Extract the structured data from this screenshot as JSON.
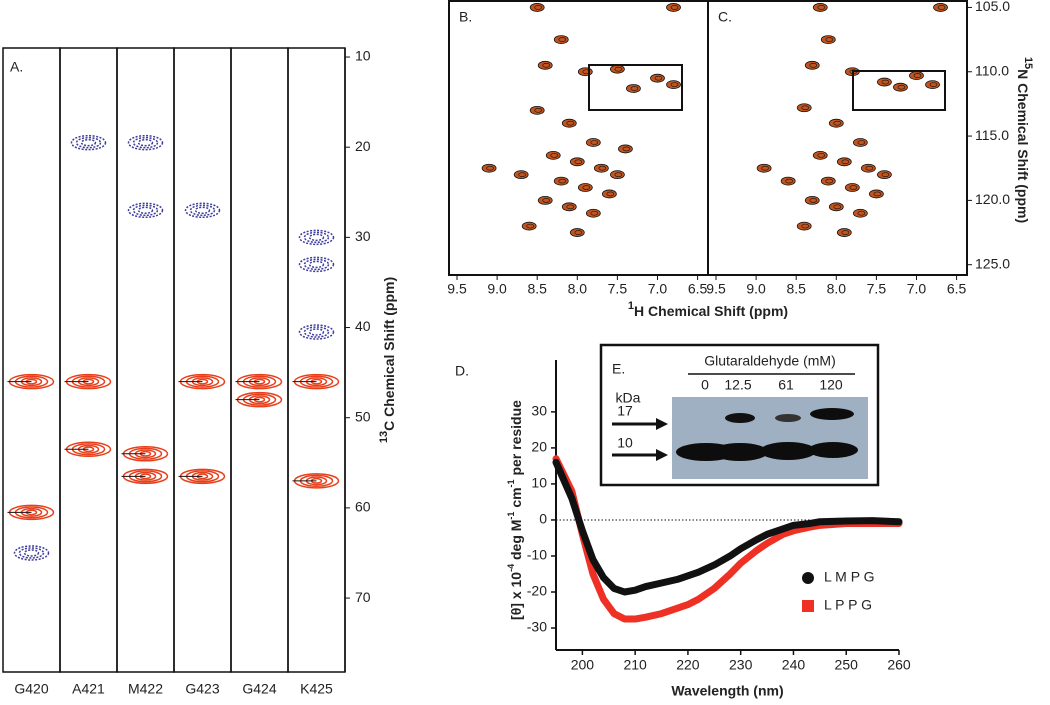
{
  "chart_data": [
    {
      "type": "strip",
      "label": "A.",
      "categories": [
        "G420",
        "A421",
        "M422",
        "G423",
        "G424",
        "K425"
      ],
      "peaks": [
        {
          "positive": [
            46,
            60.5
          ],
          "negative": [
            65
          ]
        },
        {
          "positive": [
            46,
            53.5
          ],
          "negative": [
            19.5
          ]
        },
        {
          "positive": [
            54,
            56.5
          ],
          "negative": [
            19.5,
            27
          ]
        },
        {
          "positive": [
            46,
            56.5
          ],
          "negative": [
            27
          ]
        },
        {
          "positive": [
            46,
            48
          ],
          "negative": []
        },
        {
          "positive": [
            46,
            57
          ],
          "negative": [
            30,
            33,
            40.5
          ]
        }
      ],
      "positive_color": "#e8401c",
      "negative_color": "#3d3d9e",
      "ylim": [
        9,
        78.2
      ],
      "yticks": [
        10,
        20,
        30,
        40,
        50,
        60,
        70
      ],
      "ylabel": {
        "sup": "13",
        "text": "C Chemical Shift (ppm)"
      }
    },
    {
      "type": "scatter",
      "label": "B.",
      "x": [
        8.5,
        6.8,
        8.2,
        8.4,
        7.9,
        7.5,
        7.0,
        7.3,
        6.8,
        8.5,
        8.1,
        7.8,
        8.3,
        8.0,
        7.7,
        8.2,
        7.9,
        7.6,
        8.4,
        8.1,
        7.8,
        8.6,
        9.1,
        8.0,
        7.5,
        7.4,
        8.7
      ],
      "y": [
        105,
        105,
        107.5,
        109.5,
        110,
        109.8,
        110.5,
        111.3,
        111,
        113,
        114,
        115.5,
        116.5,
        117,
        117.5,
        118.5,
        119,
        119.5,
        120,
        120.5,
        121,
        122,
        117.5,
        122.5,
        118,
        116,
        118
      ],
      "color": "#c2551f",
      "xlim": [
        9.6,
        6.37
      ],
      "ylim": [
        104.5,
        125.8
      ],
      "xticks": [
        {
          "value": 9.5,
          "label": "9.5"
        },
        {
          "value": 9,
          "label": "9.0"
        },
        {
          "value": 8.5,
          "label": "8.5"
        },
        {
          "value": 8,
          "label": "8.0"
        },
        {
          "value": 7.5,
          "label": "7.5"
        },
        {
          "value": 7,
          "label": "7.0"
        },
        {
          "value": 6.5,
          "label": "6.5"
        }
      ],
      "xlabel": {
        "sup": "1",
        "text": "H Chemical Shift (ppm)"
      }
    },
    {
      "type": "scatter",
      "label": "C.",
      "x": [
        8.2,
        6.7,
        8.1,
        8.3,
        7.8,
        7.4,
        7.0,
        7.2,
        6.8,
        8.4,
        8.0,
        7.7,
        8.2,
        7.9,
        7.6,
        8.1,
        7.8,
        7.5,
        8.3,
        8.0,
        7.7,
        8.4,
        8.9,
        7.9,
        7.4,
        8.6
      ],
      "y": [
        105,
        105,
        107.5,
        109.5,
        110,
        110.8,
        110.3,
        111.2,
        111,
        112.8,
        114,
        115.5,
        116.5,
        117,
        117.5,
        118.5,
        119,
        119.5,
        120,
        120.5,
        121,
        122,
        117.5,
        122.5,
        118,
        118.5
      ],
      "color": "#c2551f",
      "xlim": [
        9.6,
        6.37
      ],
      "ylim": [
        104.5,
        125.8
      ],
      "xticks": [
        {
          "value": 9.5,
          "label": "9.5"
        },
        {
          "value": 9,
          "label": "9.0"
        },
        {
          "value": 8.5,
          "label": "8.5"
        },
        {
          "value": 8,
          "label": "8.0"
        },
        {
          "value": 7.5,
          "label": "7.5"
        },
        {
          "value": 7,
          "label": "7.0"
        },
        {
          "value": 6.5,
          "label": "6.5"
        }
      ],
      "yticks": [
        {
          "value": 105,
          "label": "105.0"
        },
        {
          "value": 110,
          "label": "110.0"
        },
        {
          "value": 115,
          "label": "115.0"
        },
        {
          "value": 120,
          "label": "120.0"
        },
        {
          "value": 125,
          "label": "125.0"
        }
      ],
      "ylabel": {
        "sup": "15",
        "text": "N Chemical Shift (ppm)"
      }
    },
    {
      "type": "line",
      "label": "D.",
      "x": [
        195,
        198,
        200,
        202,
        204,
        206,
        208,
        210,
        212,
        215,
        218,
        220,
        222,
        225,
        228,
        230,
        233,
        235,
        238,
        240,
        243,
        245,
        250,
        255,
        260
      ],
      "series": [
        {
          "name": "L M P G",
          "color": "#111111",
          "marker": "circle",
          "values": [
            16,
            6,
            -3,
            -11,
            -16,
            -19,
            -20,
            -19.5,
            -18.5,
            -17.5,
            -16.5,
            -15.5,
            -14.5,
            -12.5,
            -10,
            -8,
            -5.5,
            -4,
            -2.5,
            -1.5,
            -1,
            -0.5,
            -0.3,
            -0.2,
            -0.5
          ]
        },
        {
          "name": "L P P G",
          "color": "#ee3124",
          "marker": "square",
          "values": [
            17,
            8,
            -4,
            -15,
            -22,
            -26,
            -27.5,
            -27.5,
            -27,
            -26,
            -24.5,
            -23.5,
            -22,
            -19,
            -15,
            -12,
            -8.5,
            -6.5,
            -4,
            -3,
            -2,
            -1.5,
            -1,
            -1,
            -1
          ]
        }
      ],
      "xlim": [
        195,
        260
      ],
      "ylim": [
        -36.1,
        44.4
      ],
      "xticks": [
        200,
        210,
        220,
        230,
        240,
        250,
        260
      ],
      "yticks": [
        30,
        20,
        10,
        0,
        -10,
        -20,
        -30
      ],
      "zero_line": true,
      "legend": "lower right",
      "xlabel": "Wavelength (nm)",
      "ylabel_parts": [
        "[θ] x 10",
        "-4",
        " deg M",
        "-1",
        " cm",
        "-1",
        " per residue"
      ],
      "inset": {
        "label": "E.",
        "title": "Glutaraldehyde (mM)",
        "lanes": [
          "0",
          "12.5",
          "61",
          "120"
        ],
        "unit": "kDa",
        "markers": [
          "17",
          "10"
        ]
      }
    }
  ]
}
